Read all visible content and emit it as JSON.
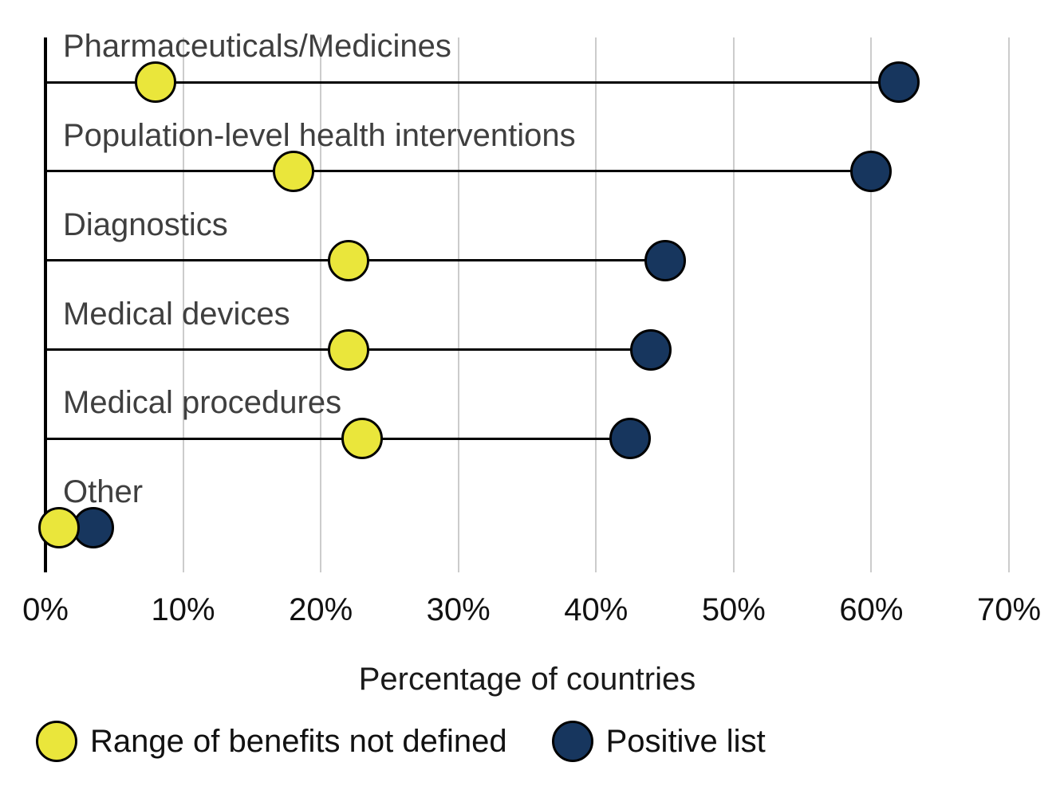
{
  "chart_data": {
    "type": "dumbbell",
    "title": "",
    "categories": [
      "Pharmaceuticals/Medicines",
      "Population-level health interventions",
      "Diagnostics",
      "Medical devices",
      "Medical procedures",
      "Other"
    ],
    "series": [
      {
        "name": "Range of benefits not defined",
        "color": "#eae63b",
        "values": [
          8,
          18,
          22,
          22,
          23,
          1
        ]
      },
      {
        "name": "Positive list",
        "color": "#17365e",
        "values": [
          62,
          60,
          45,
          44,
          42.5,
          3.5
        ]
      }
    ],
    "xlabel": "Percentage of countries",
    "ylabel": "",
    "xlim": [
      0,
      70
    ],
    "x_tick_values": [
      0,
      10,
      20,
      30,
      40,
      50,
      60,
      70
    ],
    "x_ticks": [
      "0%",
      "10%",
      "20%",
      "30%",
      "40%",
      "50%",
      "60%",
      "70%"
    ],
    "grid": true,
    "legend_position": "bottom"
  },
  "colors": {
    "yellow_marker": "#eae63b",
    "navy_marker": "#17365e",
    "gridline": "#cccccc",
    "axis_line": "#000000",
    "connector": "#000000",
    "category_text": "#3f3f3f",
    "tick_text": "#111111"
  }
}
